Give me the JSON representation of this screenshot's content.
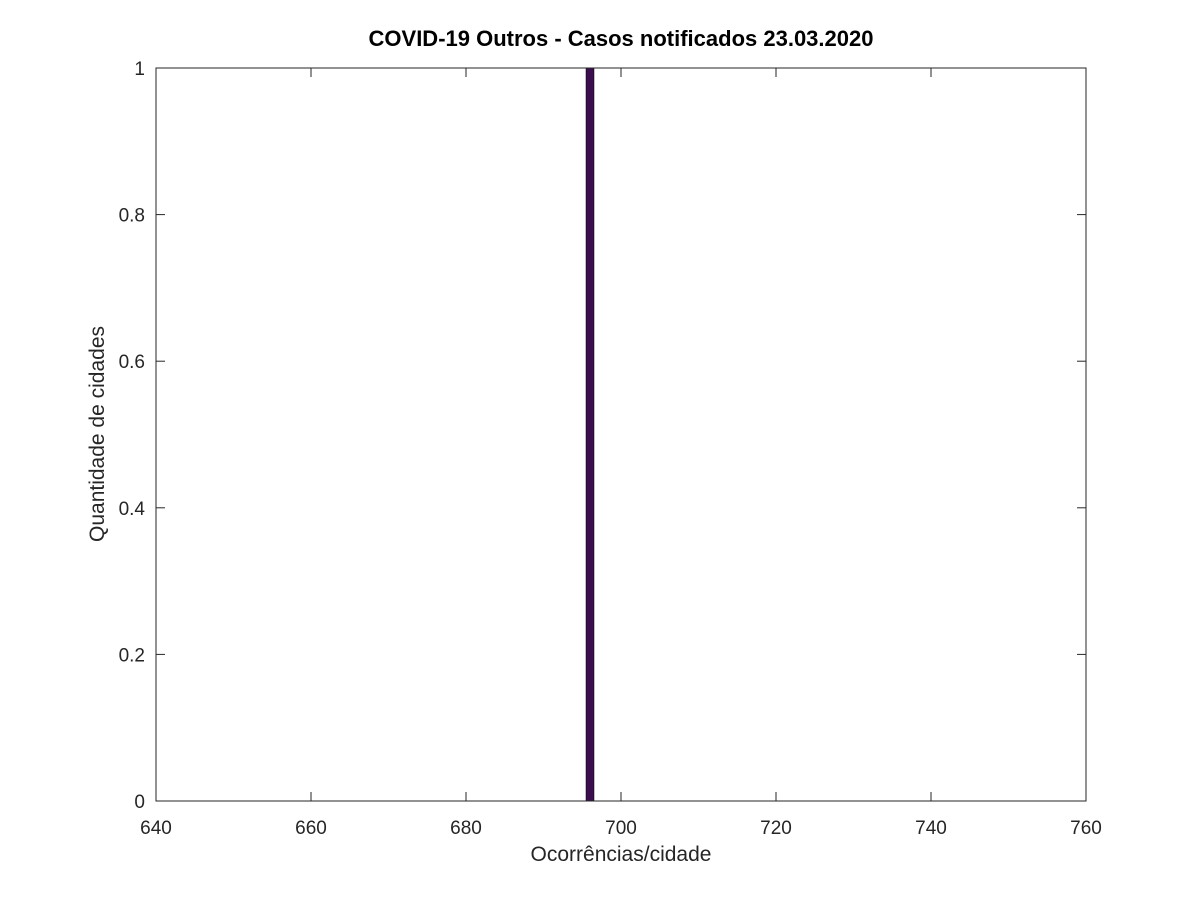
{
  "chart_data": {
    "type": "bar",
    "title": "COVID-19 Outros - Casos notificados 23.03.2020",
    "xlabel": "Ocorrências/cidade",
    "ylabel": "Quantidade de cidades",
    "xlim": [
      640,
      760
    ],
    "ylim": [
      0,
      1
    ],
    "xticks": [
      640,
      660,
      680,
      700,
      720,
      740,
      760
    ],
    "yticks": [
      0,
      0.2,
      0.4,
      0.6,
      0.8,
      1
    ],
    "xtick_labels": [
      "640",
      "660",
      "680",
      "700",
      "720",
      "740",
      "760"
    ],
    "ytick_labels": [
      "0",
      "0.2",
      "0.4",
      "0.6",
      "0.8",
      "1"
    ],
    "bars": [
      {
        "x": 696,
        "value": 1
      }
    ],
    "bar_color": "#3b0f4f",
    "grid": false,
    "box": true
  }
}
